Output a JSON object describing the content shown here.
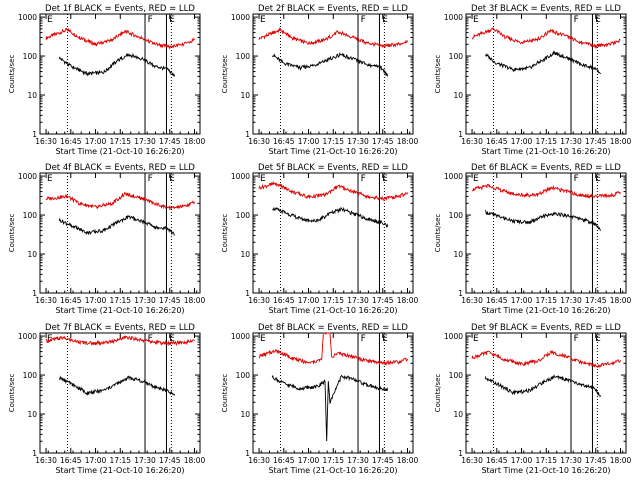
{
  "chart_data": [
    {
      "type": "line",
      "title": "Det 1f BLACK = Events, RED = LLD",
      "xlabel": "Start Time (21-Oct-10 16:26:20)",
      "ylabel": "Counts/sec",
      "x_ticks": [
        "16:30",
        "16:45",
        "17:00",
        "17:15",
        "17:30",
        "17:45",
        "18:00"
      ],
      "y_ticks": [
        "1",
        "10",
        "100",
        "1000"
      ],
      "yscale": "log",
      "ylim": [
        1,
        1200
      ],
      "xlim_minutes_since_start": [
        0,
        97
      ],
      "flags": [
        {
          "label": "E",
          "at": "16:30"
        },
        {
          "label": "F",
          "at": "17:31"
        },
        {
          "label": "E",
          "at": "17:44"
        }
      ],
      "flag_lines_solid": [
        "17:30",
        "17:43"
      ],
      "flag_lines_dotted": [
        "16:43",
        "17:46"
      ],
      "series": [
        {
          "color": "#e00000",
          "x": [
            "16:30",
            "16:43",
            "16:50",
            "17:00",
            "17:10",
            "17:18",
            "17:27",
            "17:35",
            "17:45",
            "17:55",
            "18:00"
          ],
          "y": [
            290,
            480,
            300,
            200,
            260,
            430,
            300,
            210,
            170,
            210,
            260
          ]
        },
        {
          "color": "#000000",
          "x": [
            "16:38",
            "16:45",
            "16:55",
            "17:05",
            "17:13",
            "17:20",
            "17:28",
            "17:36",
            "17:44",
            "17:48"
          ],
          "y": [
            90,
            55,
            35,
            38,
            75,
            110,
            85,
            55,
            45,
            30
          ]
        }
      ]
    },
    {
      "type": "line",
      "title": "Det 2f BLACK = Events, RED = LLD",
      "xlabel": "Start Time (21-Oct-10 16:26:20)",
      "ylabel": "Counts/sec",
      "x_ticks": [
        "16:30",
        "16:45",
        "17:00",
        "17:15",
        "17:30",
        "17:45",
        "18:00"
      ],
      "y_ticks": [
        "1",
        "10",
        "100",
        "1000"
      ],
      "yscale": "log",
      "ylim": [
        1,
        1200
      ],
      "xlim_minutes_since_start": [
        0,
        97
      ],
      "flags": [
        {
          "label": "E",
          "at": "16:30"
        },
        {
          "label": "F",
          "at": "17:31"
        },
        {
          "label": "E",
          "at": "17:44"
        }
      ],
      "flag_lines_solid": [
        "17:30",
        "17:43"
      ],
      "flag_lines_dotted": [
        "16:43",
        "17:46"
      ],
      "series": [
        {
          "color": "#e00000",
          "x": [
            "16:30",
            "16:43",
            "16:50",
            "17:00",
            "17:10",
            "17:18",
            "17:27",
            "17:35",
            "17:45",
            "17:55",
            "18:00"
          ],
          "y": [
            280,
            470,
            290,
            210,
            260,
            420,
            300,
            220,
            180,
            200,
            250
          ]
        },
        {
          "color": "#000000",
          "x": [
            "16:38",
            "16:45",
            "16:55",
            "17:05",
            "17:13",
            "17:20",
            "17:28",
            "17:36",
            "17:44",
            "17:48"
          ],
          "y": [
            110,
            65,
            50,
            60,
            85,
            110,
            80,
            60,
            50,
            30
          ]
        }
      ]
    },
    {
      "type": "line",
      "title": "Det 3f BLACK = Events, RED = LLD",
      "xlabel": "Start Time (21-Oct-10 16:26:20)",
      "ylabel": "Counts/sec",
      "x_ticks": [
        "16:30",
        "16:45",
        "17:00",
        "17:15",
        "17:30",
        "17:45",
        "18:00"
      ],
      "y_ticks": [
        "1",
        "10",
        "100",
        "1000"
      ],
      "yscale": "log",
      "ylim": [
        1,
        1200
      ],
      "xlim_minutes_since_start": [
        0,
        97
      ],
      "flags": [
        {
          "label": "E",
          "at": "16:30"
        },
        {
          "label": "F",
          "at": "17:31"
        },
        {
          "label": "E",
          "at": "17:44"
        }
      ],
      "flag_lines_solid": [
        "17:30",
        "17:43"
      ],
      "flag_lines_dotted": [
        "16:43",
        "17:46"
      ],
      "series": [
        {
          "color": "#e00000",
          "x": [
            "16:30",
            "16:43",
            "16:50",
            "17:00",
            "17:10",
            "17:18",
            "17:27",
            "17:35",
            "17:45",
            "17:55",
            "18:00"
          ],
          "y": [
            300,
            500,
            310,
            220,
            270,
            450,
            320,
            230,
            180,
            210,
            260
          ]
        },
        {
          "color": "#000000",
          "x": [
            "16:38",
            "16:45",
            "16:55",
            "17:05",
            "17:13",
            "17:20",
            "17:28",
            "17:36",
            "17:44",
            "17:48"
          ],
          "y": [
            110,
            65,
            45,
            50,
            80,
            120,
            90,
            60,
            50,
            35
          ]
        }
      ]
    },
    {
      "type": "line",
      "title": "Det 4f BLACK = Events, RED = LLD",
      "xlabel": "Start Time (21-Oct-10 16:26:20)",
      "ylabel": "Counts/sec",
      "x_ticks": [
        "16:30",
        "16:45",
        "17:00",
        "17:15",
        "17:30",
        "17:45",
        "18:00"
      ],
      "y_ticks": [
        "1",
        "10",
        "100",
        "1000"
      ],
      "yscale": "log",
      "ylim": [
        1,
        1200
      ],
      "xlim_minutes_since_start": [
        0,
        97
      ],
      "flags": [
        {
          "label": "E",
          "at": "16:30"
        },
        {
          "label": "F",
          "at": "17:31"
        },
        {
          "label": "E",
          "at": "17:44"
        }
      ],
      "flag_lines_solid": [
        "17:30",
        "17:43"
      ],
      "flag_lines_dotted": [
        "16:43",
        "17:46"
      ],
      "series": [
        {
          "color": "#e00000",
          "x": [
            "16:30",
            "16:43",
            "16:50",
            "17:00",
            "17:10",
            "17:18",
            "17:27",
            "17:35",
            "17:45",
            "17:55",
            "18:00"
          ],
          "y": [
            260,
            300,
            200,
            160,
            200,
            350,
            280,
            200,
            150,
            170,
            220
          ]
        },
        {
          "color": "#000000",
          "x": [
            "16:38",
            "16:45",
            "16:55",
            "17:05",
            "17:13",
            "17:20",
            "17:28",
            "17:36",
            "17:44",
            "17:48"
          ],
          "y": [
            75,
            55,
            35,
            40,
            65,
            90,
            70,
            50,
            45,
            30
          ]
        }
      ]
    },
    {
      "type": "line",
      "title": "Det 5f BLACK = Events, RED = LLD",
      "xlabel": "Start Time (21-Oct-10 16:26:20)",
      "ylabel": "Counts/sec",
      "x_ticks": [
        "16:30",
        "16:45",
        "17:00",
        "17:15",
        "17:30",
        "17:45",
        "18:00"
      ],
      "y_ticks": [
        "1",
        "10",
        "100",
        "1000"
      ],
      "yscale": "log",
      "ylim": [
        1,
        1200
      ],
      "xlim_minutes_since_start": [
        0,
        97
      ],
      "flags": [
        {
          "label": "E",
          "at": "16:30"
        },
        {
          "label": "F",
          "at": "17:31"
        },
        {
          "label": "E",
          "at": "17:44"
        }
      ],
      "flag_lines_solid": [
        "17:30",
        "17:43"
      ],
      "flag_lines_dotted": [
        "16:43",
        "17:46"
      ],
      "series": [
        {
          "color": "#e00000",
          "x": [
            "16:30",
            "16:40",
            "16:50",
            "17:00",
            "17:10",
            "17:18",
            "17:27",
            "17:35",
            "17:45",
            "17:55",
            "18:00"
          ],
          "y": [
            500,
            650,
            400,
            290,
            330,
            560,
            400,
            310,
            260,
            300,
            380
          ]
        },
        {
          "color": "#000000",
          "x": [
            "16:38",
            "16:45",
            "16:55",
            "17:05",
            "17:13",
            "17:20",
            "17:28",
            "17:36",
            "17:44",
            "17:48"
          ],
          "y": [
            150,
            120,
            80,
            70,
            110,
            140,
            105,
            80,
            65,
            50
          ]
        }
      ]
    },
    {
      "type": "line",
      "title": "Det 6f BLACK = Events, RED = LLD",
      "xlabel": "Start Time (21-Oct-10 16:26:20)",
      "ylabel": "Counts/sec",
      "x_ticks": [
        "16:30",
        "16:45",
        "17:00",
        "17:15",
        "17:30",
        "17:45",
        "18:00"
      ],
      "y_ticks": [
        "1",
        "10",
        "100",
        "1000"
      ],
      "yscale": "log",
      "ylim": [
        1,
        1200
      ],
      "xlim_minutes_since_start": [
        0,
        97
      ],
      "flags": [
        {
          "label": "E",
          "at": "16:30"
        },
        {
          "label": "F",
          "at": "17:31"
        },
        {
          "label": "E",
          "at": "17:44"
        }
      ],
      "flag_lines_solid": [
        "17:30",
        "17:43"
      ],
      "flag_lines_dotted": [
        "16:43",
        "17:46"
      ],
      "series": [
        {
          "color": "#e00000",
          "x": [
            "16:30",
            "16:40",
            "16:50",
            "17:00",
            "17:10",
            "17:18",
            "17:27",
            "17:35",
            "17:45",
            "17:55",
            "18:00"
          ],
          "y": [
            450,
            560,
            400,
            320,
            330,
            500,
            410,
            330,
            300,
            320,
            380
          ]
        },
        {
          "color": "#000000",
          "x": [
            "16:38",
            "16:45",
            "16:55",
            "17:05",
            "17:13",
            "17:20",
            "17:28",
            "17:36",
            "17:44",
            "17:48"
          ],
          "y": [
            120,
            95,
            70,
            65,
            95,
            110,
            95,
            80,
            60,
            40
          ]
        }
      ]
    },
    {
      "type": "line",
      "title": "Det 7f BLACK = Events, RED = LLD",
      "xlabel": "Start Time (21-Oct-10 16:26:20)",
      "ylabel": "Counts/sec",
      "x_ticks": [
        "16:30",
        "16:45",
        "17:00",
        "17:15",
        "17:30",
        "17:45",
        "18:00"
      ],
      "y_ticks": [
        "1",
        "10",
        "100",
        "1000"
      ],
      "yscale": "log",
      "ylim": [
        1,
        1200
      ],
      "xlim_minutes_since_start": [
        0,
        97
      ],
      "flags": [
        {
          "label": "E",
          "at": "16:30"
        },
        {
          "label": "F",
          "at": "17:31"
        },
        {
          "label": "E",
          "at": "17:44"
        }
      ],
      "flag_lines_solid": [
        "17:30",
        "17:43"
      ],
      "flag_lines_dotted": [
        "16:43",
        "17:46"
      ],
      "series": [
        {
          "color": "#e00000",
          "x": [
            "16:30",
            "16:40",
            "16:50",
            "17:00",
            "17:10",
            "17:18",
            "17:27",
            "17:35",
            "17:45",
            "17:55",
            "18:00"
          ],
          "y": [
            750,
            900,
            700,
            650,
            720,
            950,
            800,
            700,
            640,
            700,
            760
          ]
        },
        {
          "color": "#000000",
          "x": [
            "16:38",
            "16:45",
            "16:55",
            "17:05",
            "17:13",
            "17:20",
            "17:28",
            "17:36",
            "17:44",
            "17:48"
          ],
          "y": [
            85,
            60,
            35,
            40,
            60,
            85,
            70,
            50,
            40,
            30
          ]
        }
      ]
    },
    {
      "type": "line",
      "title": "Det 8f BLACK = Events, RED = LLD",
      "xlabel": "Start Time (21-Oct-10 16:26:20)",
      "ylabel": "Counts/sec",
      "x_ticks": [
        "16:30",
        "16:45",
        "17:00",
        "17:15",
        "17:30",
        "17:45",
        "18:00"
      ],
      "y_ticks": [
        "1",
        "10",
        "100",
        "1000"
      ],
      "yscale": "log",
      "ylim": [
        1,
        1200
      ],
      "xlim_minutes_since_start": [
        0,
        97
      ],
      "flags": [
        {
          "label": "E",
          "at": "16:30"
        },
        {
          "label": "F",
          "at": "17:31"
        },
        {
          "label": "E",
          "at": "17:44"
        }
      ],
      "flag_lines_solid": [
        "17:30",
        "17:43"
      ],
      "flag_lines_dotted": [
        "16:43",
        "17:46"
      ],
      "series": [
        {
          "color": "#e00000",
          "x": [
            "16:30",
            "16:40",
            "16:50",
            "17:00",
            "17:08",
            "17:09",
            "17:10",
            "17:13",
            "17:14",
            "17:18",
            "17:27",
            "17:35",
            "17:45",
            "17:55",
            "18:00"
          ],
          "y": [
            300,
            420,
            280,
            200,
            250,
            1200,
            1200,
            1200,
            300,
            360,
            300,
            230,
            200,
            220,
            260
          ]
        },
        {
          "color": "#000000",
          "x": [
            "16:38",
            "16:45",
            "16:55",
            "17:05",
            "17:10",
            "17:11",
            "17:12",
            "17:13",
            "17:20",
            "17:28",
            "17:36",
            "17:44",
            "17:48"
          ],
          "y": [
            90,
            60,
            45,
            50,
            70,
            2,
            70,
            20,
            95,
            75,
            55,
            45,
            40
          ]
        }
      ]
    },
    {
      "type": "line",
      "title": "Det 9f BLACK = Events, RED = LLD",
      "xlabel": "Start Time (21-Oct-10 16:26:20)",
      "ylabel": "Counts/sec",
      "x_ticks": [
        "16:30",
        "16:45",
        "17:00",
        "17:15",
        "17:30",
        "17:45",
        "18:00"
      ],
      "y_ticks": [
        "1",
        "10",
        "100",
        "1000"
      ],
      "yscale": "log",
      "ylim": [
        1,
        1200
      ],
      "xlim_minutes_since_start": [
        0,
        97
      ],
      "flags": [
        {
          "label": "E",
          "at": "16:30"
        },
        {
          "label": "F",
          "at": "17:31"
        },
        {
          "label": "E",
          "at": "17:44"
        }
      ],
      "flag_lines_solid": [
        "17:30",
        "17:43"
      ],
      "flag_lines_dotted": [
        "16:43",
        "17:46"
      ],
      "series": [
        {
          "color": "#e00000",
          "x": [
            "16:30",
            "16:40",
            "16:50",
            "17:00",
            "17:10",
            "17:18",
            "17:27",
            "17:35",
            "17:45",
            "17:55",
            "18:00"
          ],
          "y": [
            280,
            380,
            250,
            190,
            230,
            380,
            300,
            220,
            170,
            200,
            240
          ]
        },
        {
          "color": "#000000",
          "x": [
            "16:38",
            "16:45",
            "16:55",
            "17:05",
            "17:13",
            "17:20",
            "17:28",
            "17:36",
            "17:44",
            "17:48"
          ],
          "y": [
            85,
            60,
            35,
            40,
            65,
            90,
            75,
            55,
            45,
            30
          ]
        }
      ]
    }
  ]
}
